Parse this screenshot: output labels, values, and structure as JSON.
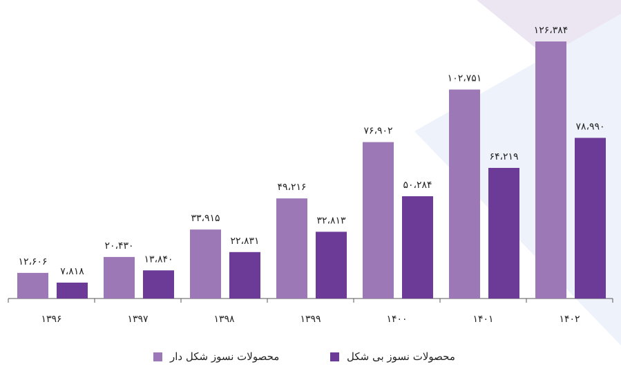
{
  "chart_data": {
    "type": "bar",
    "categories": [
      "۱۳۹۶",
      "۱۳۹۷",
      "۱۳۹۸",
      "۱۳۹۹",
      "۱۴۰۰",
      "۱۴۰۱",
      "۱۴۰۲"
    ],
    "series": [
      {
        "name": "محصولات نسوز شکل دار",
        "color": "#9c78b6",
        "values": [
          12606,
          20430,
          33915,
          49216,
          76902,
          102751,
          126384
        ],
        "value_labels": [
          "۱۲،۶۰۶",
          "۲۰،۴۳۰",
          "۳۳،۹۱۵",
          "۴۹،۲۱۶",
          "۷۶،۹۰۲",
          "۱۰۲،۷۵۱",
          "۱۲۶،۳۸۴"
        ]
      },
      {
        "name": "محصولات نسوز بی شکل",
        "color": "#6c3a97",
        "values": [
          7818,
          13840,
          22831,
          32813,
          50284,
          64219,
          78990
        ],
        "value_labels": [
          "۷،۸۱۸",
          "۱۳،۸۴۰",
          "۲۲،۸۳۱",
          "۳۲،۸۱۳",
          "۵۰،۲۸۴",
          "۶۴،۲۱۹",
          "۷۸،۹۹۰"
        ]
      }
    ]
  }
}
